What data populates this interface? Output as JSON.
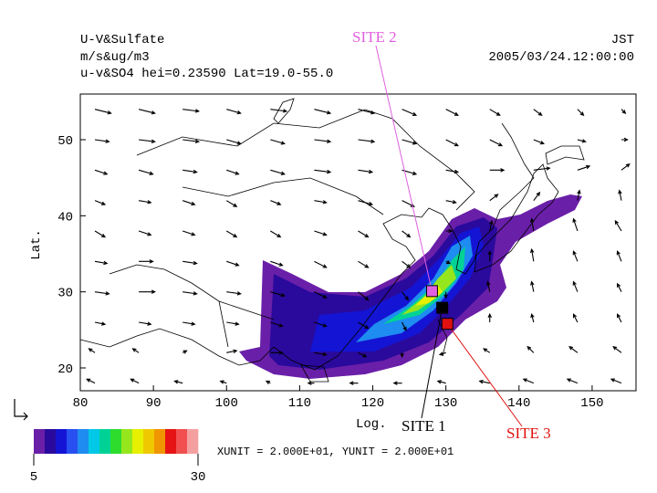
{
  "header": {
    "title": "U-V&Sulfate",
    "units": "m/s&ug/m3",
    "subtitle": "u-v&SO4 hei=0.23590 Lat=19.0-55.0",
    "timezone": "JST",
    "datetime": "2005/03/24.12:00:00"
  },
  "axes": {
    "xlabel": "Log.",
    "ylabel": "Lat.",
    "xlim": [
      80,
      156
    ],
    "ylim": [
      17,
      56
    ],
    "xticks": [
      80,
      90,
      100,
      110,
      120,
      130,
      140,
      150
    ],
    "yticks": [
      20,
      30,
      40,
      50
    ]
  },
  "sites": [
    {
      "label": "SITE 1",
      "lon": 129.5,
      "lat": 27.9,
      "color": "#000000"
    },
    {
      "label": "SITE 2",
      "lon": 128.1,
      "lat": 30.1,
      "color": "#e060e0"
    },
    {
      "label": "SITE 3",
      "lon": 130.2,
      "lat": 25.8,
      "color": "#e01010"
    }
  ],
  "wind": {
    "lons": [
      82,
      88,
      94,
      100,
      106,
      112,
      118,
      124,
      130,
      136,
      142,
      148,
      154
    ],
    "lats": [
      54,
      50,
      46,
      42,
      38,
      34,
      30,
      26,
      22,
      18
    ],
    "u": [
      [
        8,
        8,
        8,
        7,
        8,
        8,
        8,
        7,
        6,
        5,
        4,
        3,
        2
      ],
      [
        7,
        8,
        8,
        7,
        7,
        8,
        8,
        7,
        6,
        6,
        5,
        4,
        3
      ],
      [
        6,
        7,
        7,
        6,
        7,
        8,
        7,
        7,
        6,
        7,
        8,
        6,
        4
      ],
      [
        5,
        6,
        6,
        5,
        5,
        6,
        7,
        6,
        5,
        4,
        3,
        1,
        -1
      ],
      [
        5,
        6,
        6,
        5,
        5,
        6,
        5,
        4,
        3,
        1,
        -1,
        -2,
        -3
      ],
      [
        6,
        7,
        7,
        6,
        6,
        6,
        5,
        4,
        2,
        0,
        -1,
        -2,
        -2
      ],
      [
        7,
        8,
        7,
        7,
        7,
        6,
        5,
        3,
        0,
        -1,
        -1,
        -2,
        -2
      ],
      [
        5,
        6,
        6,
        6,
        6,
        6,
        5,
        2,
        -2,
        0,
        -1,
        -2,
        -2
      ],
      [
        -3,
        -3,
        2,
        5,
        6,
        6,
        4,
        0,
        -3,
        -3,
        -3,
        -4,
        -4
      ],
      [
        -4,
        -4,
        -4,
        -3,
        -2,
        -3,
        -4,
        -4,
        -4,
        -5,
        -5,
        -5,
        -5
      ]
    ],
    "v": [
      [
        -2,
        -2,
        -1,
        -2,
        -1,
        -2,
        -2,
        -3,
        -3,
        -3,
        -3,
        -3,
        -2
      ],
      [
        -1,
        -1,
        -1,
        -2,
        -2,
        -1,
        -1,
        -2,
        -3,
        -3,
        -2,
        -1,
        0
      ],
      [
        -2,
        -2,
        -1,
        -2,
        -2,
        -1,
        -1,
        -2,
        -1,
        0,
        1,
        2,
        3
      ],
      [
        -2,
        -1,
        -2,
        -3,
        -2,
        -1,
        -2,
        -3,
        -1,
        3,
        4,
        5,
        5
      ],
      [
        -3,
        -2,
        -2,
        -3,
        -3,
        -2,
        -3,
        -3,
        0,
        5,
        6,
        6,
        5
      ],
      [
        -1,
        0,
        -1,
        -2,
        -2,
        -3,
        -3,
        -3,
        -1,
        5,
        6,
        5,
        5
      ],
      [
        -1,
        0,
        -1,
        -1,
        -2,
        -3,
        -4,
        -4,
        -3,
        5,
        5,
        5,
        4
      ],
      [
        -1,
        -1,
        -1,
        -1,
        -2,
        -2,
        -3,
        -4,
        -3,
        4,
        4,
        4,
        4
      ],
      [
        2,
        2,
        1,
        1,
        0,
        -1,
        -2,
        -2,
        -1,
        2,
        3,
        3,
        3
      ],
      [
        2,
        2,
        1,
        1,
        1,
        0,
        0,
        0,
        1,
        1,
        2,
        2,
        2
      ]
    ]
  },
  "colorbar": {
    "colors": [
      "#6a1fa8",
      "#2a0a9c",
      "#1414d4",
      "#2850f0",
      "#1e8cf0",
      "#00c8e6",
      "#00d296",
      "#2edc2e",
      "#96e61e",
      "#e6f000",
      "#f0c800",
      "#f09600",
      "#e61414",
      "#f05050",
      "#f5a0a0"
    ],
    "range": [
      5,
      30
    ]
  },
  "footer": "XUNIT = 2.000E+01, YUNIT = 2.000E+01"
}
